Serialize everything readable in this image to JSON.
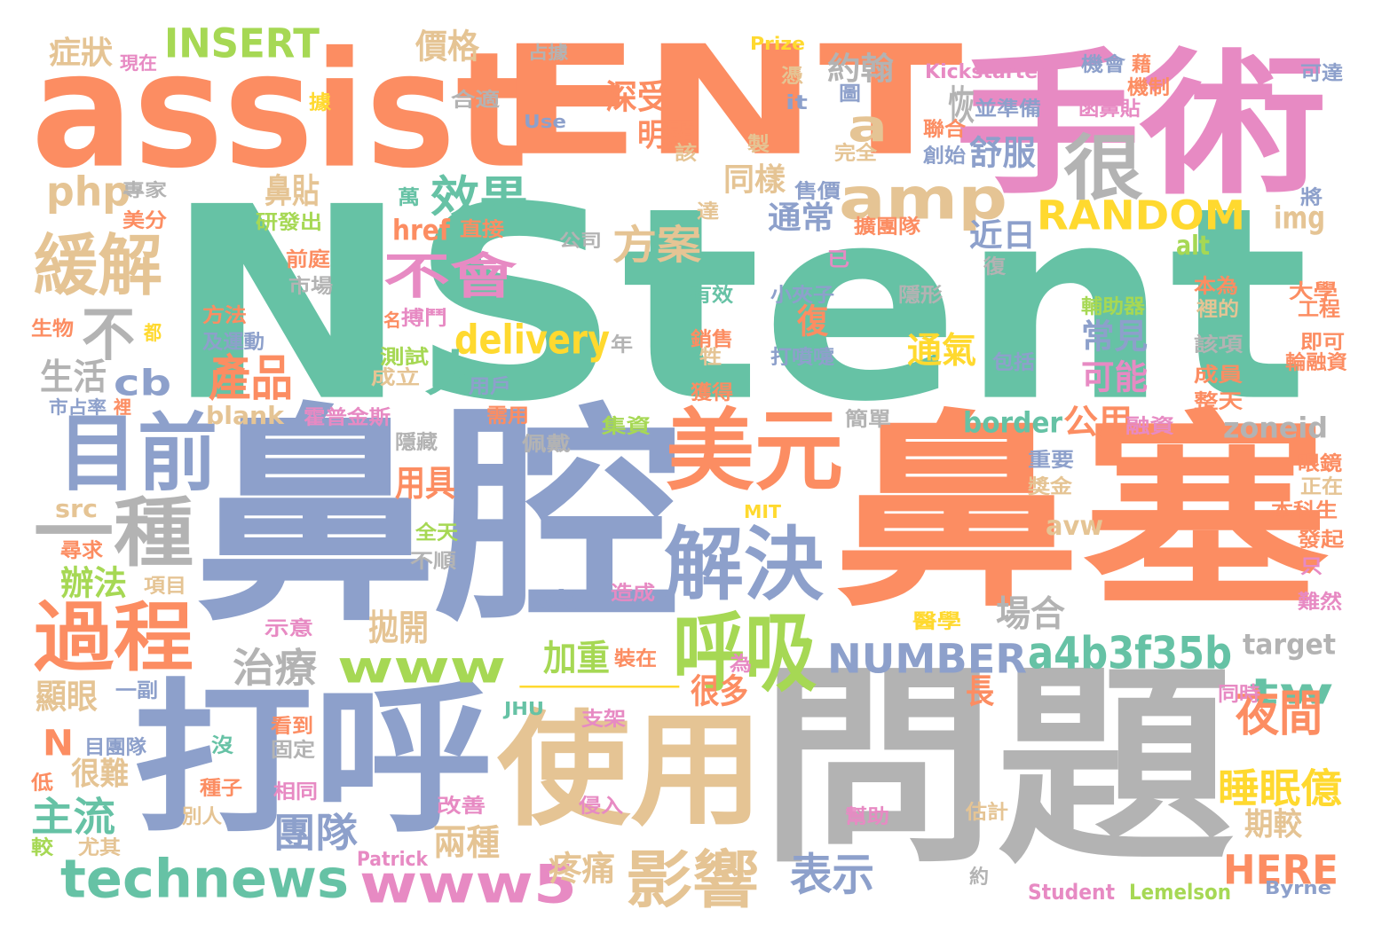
{
  "palette": {
    "green": "#66c2a5",
    "orange": "#fc8d62",
    "blue": "#8da0cb",
    "pink": "#e78ac3",
    "lime": "#a6d854",
    "yellow": "#ffd92f",
    "tan": "#e5c494",
    "gray": "#b3b3b3"
  },
  "words": [
    {
      "text": "NStent",
      "color": "green"
    },
    {
      "text": "assist",
      "color": "orange"
    },
    {
      "text": "ENT",
      "color": "orange"
    },
    {
      "text": "手術",
      "color": "pink"
    },
    {
      "text": "鼻腔",
      "color": "blue"
    },
    {
      "text": "鼻塞",
      "color": "orange"
    },
    {
      "text": "問題",
      "color": "gray"
    },
    {
      "text": "打呼",
      "color": "blue"
    },
    {
      "text": "使用",
      "color": "tan"
    },
    {
      "text": "一",
      "color": "yellow"
    },
    {
      "text": "amp",
      "color": "tan"
    },
    {
      "text": "a",
      "color": "tan"
    },
    {
      "text": "很",
      "color": "gray"
    },
    {
      "text": "緩解",
      "color": "tan"
    },
    {
      "text": "不",
      "color": "gray"
    },
    {
      "text": "目前",
      "color": "blue"
    },
    {
      "text": "一種",
      "color": "gray"
    },
    {
      "text": "過程",
      "color": "orange"
    },
    {
      "text": "美元",
      "color": "orange"
    },
    {
      "text": "解決",
      "color": "blue"
    },
    {
      "text": "呼吸",
      "color": "lime"
    },
    {
      "text": "www",
      "color": "lime"
    },
    {
      "text": "technews",
      "color": "green"
    },
    {
      "text": "www5",
      "color": "pink"
    },
    {
      "text": "影響",
      "color": "tan"
    },
    {
      "text": "不會",
      "color": "pink"
    },
    {
      "text": "效果",
      "color": "green"
    },
    {
      "text": "delivery",
      "color": "yellow"
    },
    {
      "text": "人",
      "color": "green"
    },
    {
      "text": "產品",
      "color": "orange"
    },
    {
      "text": "cb",
      "color": "blue"
    },
    {
      "text": "php",
      "color": "tan"
    },
    {
      "text": "INSERT",
      "color": "lime"
    },
    {
      "text": "RANDOM",
      "color": "yellow"
    },
    {
      "text": "NUMBER",
      "color": "blue"
    },
    {
      "text": "a4b3f35b",
      "color": "green"
    },
    {
      "text": "tw",
      "color": "green"
    },
    {
      "text": "HERE",
      "color": "orange"
    },
    {
      "text": "治療",
      "color": "gray"
    },
    {
      "text": "主流",
      "color": "green"
    },
    {
      "text": "團隊",
      "color": "blue"
    },
    {
      "text": "表示",
      "color": "blue"
    },
    {
      "text": "夜間",
      "color": "orange"
    },
    {
      "text": "睡眠億",
      "color": "yellow"
    },
    {
      "text": "方案",
      "color": "tan"
    },
    {
      "text": "生活",
      "color": "gray"
    },
    {
      "text": "blank",
      "color": "tan"
    },
    {
      "text": "border",
      "color": "green"
    },
    {
      "text": "公用",
      "color": "orange"
    },
    {
      "text": "zoneid",
      "color": "gray"
    },
    {
      "text": "target",
      "color": "gray"
    },
    {
      "text": "avw",
      "color": "tan"
    },
    {
      "text": "ck",
      "color": "blue"
    },
    {
      "text": "N",
      "color": "orange"
    },
    {
      "text": "很難",
      "color": "tan"
    },
    {
      "text": "src",
      "color": "tan"
    },
    {
      "text": "辦法",
      "color": "lime"
    },
    {
      "text": "顯眼",
      "color": "tan"
    },
    {
      "text": "用具",
      "color": "orange"
    },
    {
      "text": "拋開",
      "color": "tan"
    },
    {
      "text": "加重",
      "color": "lime"
    },
    {
      "text": "很多",
      "color": "orange"
    },
    {
      "text": "長",
      "color": "orange"
    },
    {
      "text": "兩種",
      "color": "tan"
    },
    {
      "text": "疼痛",
      "color": "tan"
    },
    {
      "text": "期較",
      "color": "tan"
    },
    {
      "text": "場合",
      "color": "gray"
    },
    {
      "text": "近日",
      "color": "blue"
    },
    {
      "text": "alt",
      "color": "lime"
    },
    {
      "text": "img",
      "color": "tan"
    },
    {
      "text": "通常",
      "color": "blue"
    },
    {
      "text": "同樣",
      "color": "tan"
    },
    {
      "text": "鼻貼",
      "color": "tan"
    },
    {
      "text": "href",
      "color": "orange"
    },
    {
      "text": "通氣",
      "color": "yellow"
    },
    {
      "text": "常見",
      "color": "blue"
    },
    {
      "text": "可能",
      "color": "pink"
    },
    {
      "text": "恢",
      "color": "gray"
    },
    {
      "text": "舒服",
      "color": "blue"
    },
    {
      "text": "復",
      "color": "orange"
    },
    {
      "text": "明顯",
      "color": "orange"
    },
    {
      "text": "深受",
      "color": "orange"
    },
    {
      "text": "價格",
      "color": "tan"
    },
    {
      "text": "約翰",
      "color": "gray"
    },
    {
      "text": "症狀",
      "color": "tan"
    },
    {
      "text": "Kickstarter",
      "color": "pink"
    },
    {
      "text": "Prize",
      "color": "yellow"
    },
    {
      "text": "Use",
      "color": "blue"
    },
    {
      "text": "Student",
      "color": "pink"
    },
    {
      "text": "Lemelson",
      "color": "lime"
    },
    {
      "text": "Byrne",
      "color": "blue"
    },
    {
      "text": "Patrick",
      "color": "pink"
    },
    {
      "text": "MIT",
      "color": "yellow"
    },
    {
      "text": "JHU",
      "color": "green"
    },
    {
      "text": "現在",
      "color": "pink"
    },
    {
      "text": "占據",
      "color": "gray"
    },
    {
      "text": "機會",
      "color": "blue"
    },
    {
      "text": "藉",
      "color": "orange"
    },
    {
      "text": "機制",
      "color": "orange"
    },
    {
      "text": "可達",
      "color": "blue"
    },
    {
      "text": "專家",
      "color": "gray"
    },
    {
      "text": "美分",
      "color": "orange"
    },
    {
      "text": "研發出",
      "color": "lime"
    },
    {
      "text": "前庭",
      "color": "orange"
    },
    {
      "text": "市場",
      "color": "gray"
    },
    {
      "text": "方法",
      "color": "orange"
    },
    {
      "text": "及運動",
      "color": "blue"
    },
    {
      "text": "生物",
      "color": "orange"
    },
    {
      "text": "都",
      "color": "yellow"
    },
    {
      "text": "市占率",
      "color": "blue"
    },
    {
      "text": "裡",
      "color": "orange"
    },
    {
      "text": "合適",
      "color": "gray"
    },
    {
      "text": "直接",
      "color": "orange"
    },
    {
      "text": "公司",
      "color": "gray"
    },
    {
      "text": "搏鬥",
      "color": "pink"
    },
    {
      "text": "名",
      "color": "orange"
    },
    {
      "text": "測試",
      "color": "lime"
    },
    {
      "text": "成立",
      "color": "tan"
    },
    {
      "text": "用戶",
      "color": "blue"
    },
    {
      "text": "需用",
      "color": "orange"
    },
    {
      "text": "霍普金斯",
      "color": "pink"
    },
    {
      "text": "隱藏",
      "color": "gray"
    },
    {
      "text": "佩戴",
      "color": "gray"
    },
    {
      "text": "集資",
      "color": "lime"
    },
    {
      "text": "全天",
      "color": "lime"
    },
    {
      "text": "不順",
      "color": "gray"
    },
    {
      "text": "項目",
      "color": "tan"
    },
    {
      "text": "示意",
      "color": "pink"
    },
    {
      "text": "一副",
      "color": "blue"
    },
    {
      "text": "目團隊",
      "color": "blue"
    },
    {
      "text": "固定",
      "color": "gray"
    },
    {
      "text": "看到",
      "color": "orange"
    },
    {
      "text": "沒",
      "color": "green"
    },
    {
      "text": "種子",
      "color": "orange"
    },
    {
      "text": "相同",
      "color": "pink"
    },
    {
      "text": "別人",
      "color": "tan"
    },
    {
      "text": "尤其",
      "color": "tan"
    },
    {
      "text": "低",
      "color": "orange"
    },
    {
      "text": "較",
      "color": "lime"
    },
    {
      "text": "尋求",
      "color": "orange"
    },
    {
      "text": "改善",
      "color": "pink"
    },
    {
      "text": "侵入",
      "color": "pink"
    },
    {
      "text": "造成",
      "color": "pink"
    },
    {
      "text": "裝在",
      "color": "orange"
    },
    {
      "text": "為",
      "color": "pink"
    },
    {
      "text": "支架",
      "color": "pink"
    },
    {
      "text": "幫助",
      "color": "pink"
    },
    {
      "text": "估計",
      "color": "tan"
    },
    {
      "text": "約",
      "color": "gray"
    },
    {
      "text": "醫學",
      "color": "yellow"
    },
    {
      "text": "同時",
      "color": "pink"
    },
    {
      "text": "難然",
      "color": "pink"
    },
    {
      "text": "只",
      "color": "pink"
    },
    {
      "text": "發起",
      "color": "orange"
    },
    {
      "text": "本科生",
      "color": "orange"
    },
    {
      "text": "正在",
      "color": "tan"
    },
    {
      "text": "眼鏡",
      "color": "orange"
    },
    {
      "text": "融資",
      "color": "pink"
    },
    {
      "text": "整天",
      "color": "orange"
    },
    {
      "text": "成員",
      "color": "orange"
    },
    {
      "text": "獎金",
      "color": "tan"
    },
    {
      "text": "重要",
      "color": "blue"
    },
    {
      "text": "簡單",
      "color": "gray"
    },
    {
      "text": "該項",
      "color": "gray"
    },
    {
      "text": "包括",
      "color": "blue"
    },
    {
      "text": "即可",
      "color": "orange"
    },
    {
      "text": "輪融資",
      "color": "orange"
    },
    {
      "text": "大學",
      "color": "orange"
    },
    {
      "text": "工程",
      "color": "orange"
    },
    {
      "text": "本為",
      "color": "orange"
    },
    {
      "text": "裡的",
      "color": "tan"
    },
    {
      "text": "將",
      "color": "blue"
    },
    {
      "text": "輔助器",
      "color": "lime"
    },
    {
      "text": "隱形",
      "color": "gray"
    },
    {
      "text": "擴團隊",
      "color": "orange"
    },
    {
      "text": "達",
      "color": "tan"
    },
    {
      "text": "復",
      "color": "gray"
    },
    {
      "text": "小夾子",
      "color": "blue"
    },
    {
      "text": "已",
      "color": "pink"
    },
    {
      "text": "打噴嚏",
      "color": "blue"
    },
    {
      "text": "有效",
      "color": "green"
    },
    {
      "text": "銷售",
      "color": "orange"
    },
    {
      "text": "牲",
      "color": "tan"
    },
    {
      "text": "獲得",
      "color": "orange"
    },
    {
      "text": "年",
      "color": "gray"
    },
    {
      "text": "售價",
      "color": "blue"
    },
    {
      "text": "萬",
      "color": "green"
    },
    {
      "text": "完全",
      "color": "tan"
    },
    {
      "text": "製",
      "color": "tan"
    },
    {
      "text": "該",
      "color": "tan"
    },
    {
      "text": "聯合",
      "color": "orange"
    },
    {
      "text": "創始",
      "color": "blue"
    },
    {
      "text": "並準備",
      "color": "blue"
    },
    {
      "text": "函鼻貼",
      "color": "pink"
    },
    {
      "text": "憑",
      "color": "tan"
    },
    {
      "text": "it",
      "color": "blue"
    },
    {
      "text": "圖",
      "color": "blue"
    },
    {
      "text": "據",
      "color": "yellow"
    }
  ]
}
